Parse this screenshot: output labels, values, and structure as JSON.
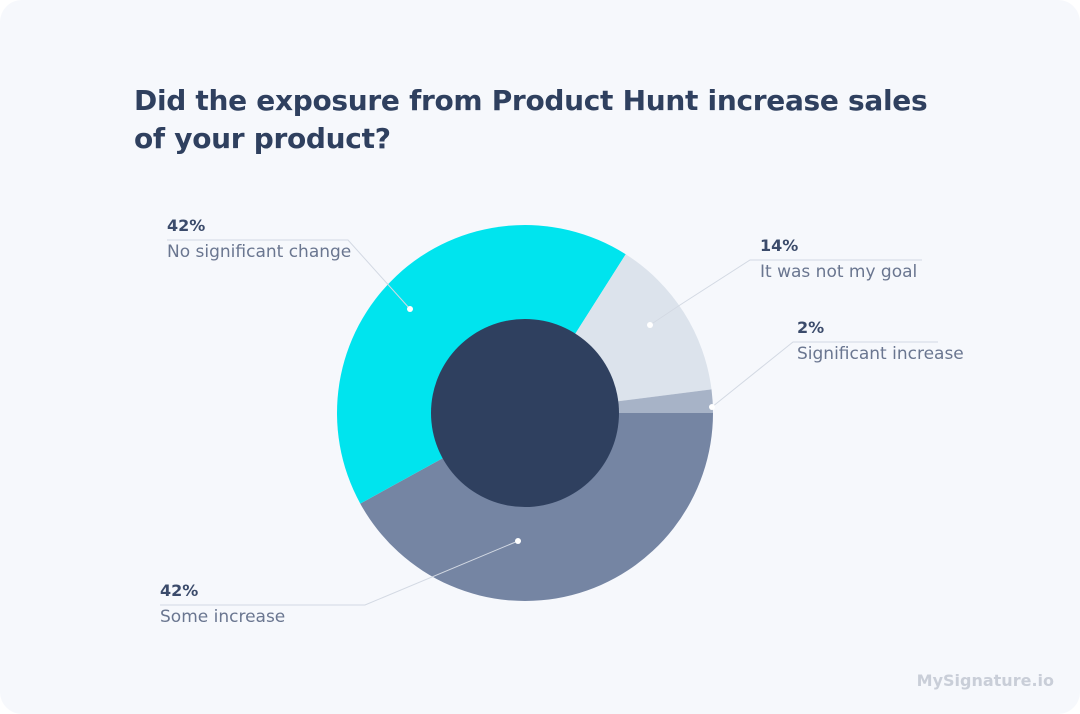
{
  "chart_data": {
    "type": "pie",
    "title": "Did the exposure from Product Hunt increase sales of your product?",
    "slices": [
      {
        "label": "Some increase",
        "value": 42,
        "display": "42%",
        "color": "#7585a3"
      },
      {
        "label": "No significant change",
        "value": 42,
        "display": "42%",
        "color": "#00e4ee"
      },
      {
        "label": "It was not my goal",
        "value": 14,
        "display": "14%",
        "color": "#dce3ec"
      },
      {
        "label": "Significant increase",
        "value": 2,
        "display": "2%",
        "color": "#a7b3c7"
      }
    ],
    "center_color": "#2f405f",
    "legend": "leader-line labels"
  },
  "brand": "MySignature.io"
}
